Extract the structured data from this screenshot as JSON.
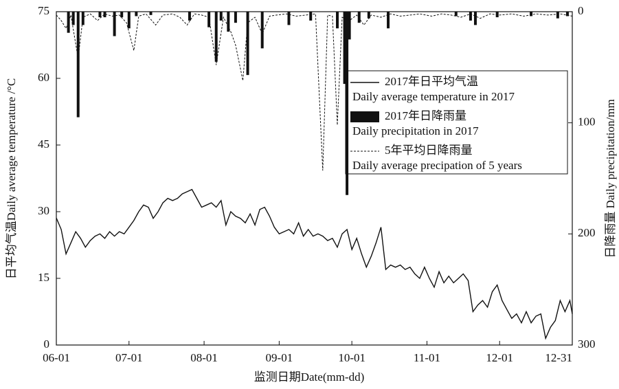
{
  "chart_data": {
    "type": "combo",
    "x_label": "监测日期Date(mm-dd)",
    "y_label": "日平均气温Daily average temperature /°C",
    "y2_label": "日降雨量 Daily precipitation/mm",
    "xlim": [
      "06-01",
      "12-31"
    ],
    "xticks": [
      "06-01",
      "07-01",
      "08-01",
      "09-01",
      "10-01",
      "11-01",
      "12-01",
      "12-31"
    ],
    "ylim": [
      0,
      75
    ],
    "yticks": [
      0,
      15,
      30,
      45,
      60,
      75
    ],
    "y2lim": [
      300,
      0
    ],
    "y2ticks": [
      0,
      100,
      200,
      300
    ],
    "series": [
      {
        "name": "2017年日平均气温",
        "name_en": "Daily average temperature in 2017",
        "type": "line",
        "color": "#111111",
        "x": [
          "06-01",
          "06-03",
          "06-05",
          "06-07",
          "06-09",
          "06-11",
          "06-13",
          "06-15",
          "06-17",
          "06-19",
          "06-21",
          "06-23",
          "06-25",
          "06-27",
          "06-29",
          "07-01",
          "07-03",
          "07-05",
          "07-07",
          "07-09",
          "07-11",
          "07-13",
          "07-15",
          "07-17",
          "07-19",
          "07-21",
          "07-23",
          "07-25",
          "07-27",
          "07-29",
          "07-31",
          "08-02",
          "08-04",
          "08-06",
          "08-08",
          "08-10",
          "08-12",
          "08-14",
          "08-16",
          "08-18",
          "08-20",
          "08-22",
          "08-24",
          "08-26",
          "08-28",
          "08-30",
          "09-01",
          "09-03",
          "09-05",
          "09-07",
          "09-09",
          "09-11",
          "09-13",
          "09-15",
          "09-17",
          "09-19",
          "09-21",
          "09-23",
          "09-25",
          "09-27",
          "09-29",
          "10-01",
          "10-03",
          "10-05",
          "10-07",
          "10-09",
          "10-11",
          "10-13",
          "10-15",
          "10-17",
          "10-19",
          "10-21",
          "10-23",
          "10-25",
          "10-27",
          "10-29",
          "10-31",
          "11-02",
          "11-04",
          "11-06",
          "11-08",
          "11-10",
          "11-12",
          "11-14",
          "11-16",
          "11-18",
          "11-20",
          "11-22",
          "11-24",
          "11-26",
          "11-28",
          "11-30",
          "12-02",
          "12-04",
          "12-06",
          "12-08",
          "12-10",
          "12-12",
          "12-14",
          "12-16",
          "12-18",
          "12-20",
          "12-22",
          "12-24",
          "12-26",
          "12-28",
          "12-30",
          "12-31"
        ],
        "values": [
          28.6,
          26,
          20.5,
          23,
          25.5,
          24,
          22,
          23.5,
          24.5,
          25,
          24,
          25.5,
          24.5,
          25.5,
          25,
          26.5,
          28,
          30,
          31.5,
          31,
          28.5,
          30,
          32,
          33,
          32.5,
          33,
          34,
          34.5,
          35,
          33,
          31,
          31.5,
          32,
          31,
          32.5,
          27,
          30,
          29,
          28.5,
          27.5,
          29.5,
          27,
          30.5,
          31,
          29,
          26.5,
          25,
          25.5,
          26,
          25,
          27.5,
          24.5,
          26,
          24.5,
          25,
          24.5,
          23.5,
          24,
          22,
          25,
          26,
          21.5,
          24,
          20.5,
          17.5,
          20,
          23,
          26.5,
          17,
          18,
          17.5,
          18,
          17,
          17.5,
          16,
          15,
          17.5,
          15,
          13,
          16.5,
          14,
          15.5,
          14,
          15,
          16,
          14.5,
          7.5,
          9,
          10,
          8.5,
          12,
          13.5,
          10,
          8,
          6,
          7,
          5,
          7.5,
          5,
          6.5,
          7,
          1.5,
          4,
          5.5,
          10,
          7.5,
          10,
          7
        ]
      },
      {
        "name": "2017年日降雨量",
        "name_en": "Daily precipitation in 2017",
        "type": "bar",
        "axis": "y2",
        "color": "#111111",
        "x": [
          "06-06",
          "06-08",
          "06-10",
          "06-12",
          "06-19",
          "06-21",
          "06-25",
          "06-28",
          "07-01",
          "07-04",
          "07-10",
          "07-26",
          "08-03",
          "08-06",
          "08-08",
          "08-11",
          "08-14",
          "08-19",
          "08-25",
          "09-05",
          "09-14",
          "09-25",
          "09-28",
          "09-29",
          "09-30",
          "10-04",
          "10-08",
          "10-16",
          "11-13",
          "11-19",
          "11-21",
          "11-30",
          "12-14",
          "12-25",
          "12-29"
        ],
        "values": [
          19,
          12,
          95,
          12,
          5,
          5,
          22,
          5,
          15,
          4,
          3,
          8,
          14,
          45,
          8,
          18,
          10,
          57,
          33,
          12,
          8,
          15,
          65,
          165,
          25,
          10,
          6,
          15,
          4,
          8,
          12,
          5,
          4,
          6,
          4
        ]
      },
      {
        "name": "5年平均日降雨量",
        "name_en": "Daily average precipation of  5 years",
        "type": "line",
        "axis": "y2",
        "color": "#111111",
        "dashed": true,
        "x": [
          "06-01",
          "06-03",
          "06-05",
          "06-07",
          "06-10",
          "06-12",
          "06-15",
          "06-18",
          "06-21",
          "06-24",
          "06-27",
          "06-30",
          "07-03",
          "07-05",
          "07-08",
          "07-12",
          "07-15",
          "07-19",
          "07-22",
          "07-25",
          "07-28",
          "07-31",
          "08-03",
          "08-06",
          "08-09",
          "08-12",
          "08-14",
          "08-17",
          "08-19",
          "08-22",
          "08-25",
          "08-28",
          "08-31",
          "09-04",
          "09-08",
          "09-12",
          "09-16",
          "09-19",
          "09-21",
          "09-23",
          "09-25",
          "09-27",
          "09-30",
          "10-03",
          "10-06",
          "10-09",
          "10-13",
          "10-17",
          "10-21",
          "10-25",
          "10-29",
          "11-03",
          "11-07",
          "11-11",
          "11-15",
          "11-19",
          "11-23",
          "11-27",
          "12-01",
          "12-06",
          "12-11",
          "12-16",
          "12-21",
          "12-26",
          "12-31"
        ],
        "values": [
          3,
          8,
          15,
          3,
          42,
          5,
          2,
          8,
          2,
          4,
          3,
          10,
          35,
          4,
          2,
          12,
          3,
          2,
          5,
          12,
          2,
          3,
          5,
          48,
          5,
          18,
          30,
          62,
          10,
          5,
          20,
          4,
          3,
          2,
          4,
          3,
          2,
          143,
          3,
          4,
          102,
          5,
          8,
          3,
          12,
          3,
          5,
          2,
          4,
          3,
          2,
          4,
          2,
          3,
          5,
          2,
          6,
          2,
          3,
          2,
          4,
          2,
          3,
          2,
          4
        ]
      }
    ]
  }
}
